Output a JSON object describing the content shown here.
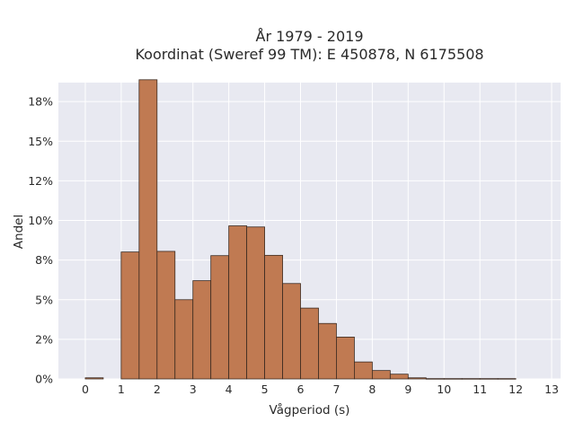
{
  "chart_data": {
    "type": "bar",
    "title": "År 1979 - 2019",
    "subtitle": "Koordinat (Sweref 99 TM): E 450878, N 6175508",
    "xlabel": "Vågperiod (s)",
    "ylabel": "Andel",
    "xlim": [
      -0.75,
      13.25
    ],
    "ylim": [
      0,
      0.187
    ],
    "x_ticks": [
      0,
      1,
      2,
      3,
      4,
      5,
      6,
      7,
      8,
      9,
      10,
      11,
      12,
      13
    ],
    "y_ticks": [
      {
        "value": 0.0,
        "label": "0%"
      },
      {
        "value": 0.025,
        "label": "2%"
      },
      {
        "value": 0.05,
        "label": "5%"
      },
      {
        "value": 0.075,
        "label": "8%"
      },
      {
        "value": 0.1,
        "label": "10%"
      },
      {
        "value": 0.125,
        "label": "12%"
      },
      {
        "value": 0.15,
        "label": "15%"
      },
      {
        "value": 0.175,
        "label": "18%"
      }
    ],
    "grid": true,
    "bin_width": 0.5,
    "bins": [
      {
        "start": 0.0,
        "value": 0.0007
      },
      {
        "start": 1.0,
        "value": 0.0801
      },
      {
        "start": 1.5,
        "value": 0.1888
      },
      {
        "start": 2.0,
        "value": 0.0805
      },
      {
        "start": 2.5,
        "value": 0.05
      },
      {
        "start": 3.0,
        "value": 0.062
      },
      {
        "start": 3.5,
        "value": 0.0778
      },
      {
        "start": 4.0,
        "value": 0.0966
      },
      {
        "start": 4.5,
        "value": 0.0959
      },
      {
        "start": 5.0,
        "value": 0.078
      },
      {
        "start": 5.5,
        "value": 0.0602
      },
      {
        "start": 6.0,
        "value": 0.0447
      },
      {
        "start": 6.5,
        "value": 0.035
      },
      {
        "start": 7.0,
        "value": 0.0264
      },
      {
        "start": 7.5,
        "value": 0.0107
      },
      {
        "start": 8.0,
        "value": 0.0053
      },
      {
        "start": 8.5,
        "value": 0.003
      },
      {
        "start": 9.0,
        "value": 0.0007
      },
      {
        "start": 9.5,
        "value": 0.0002
      },
      {
        "start": 10.0,
        "value": 0.0002
      },
      {
        "start": 10.5,
        "value": 0.0002
      },
      {
        "start": 11.0,
        "value": 0.0002
      },
      {
        "start": 11.5,
        "value": 0.0002
      }
    ],
    "colors": {
      "bar_fill": "#c07a52",
      "bar_edge": "#3b2a20",
      "plot_background": "#e8e9f1",
      "grid": "#ffffff"
    }
  }
}
